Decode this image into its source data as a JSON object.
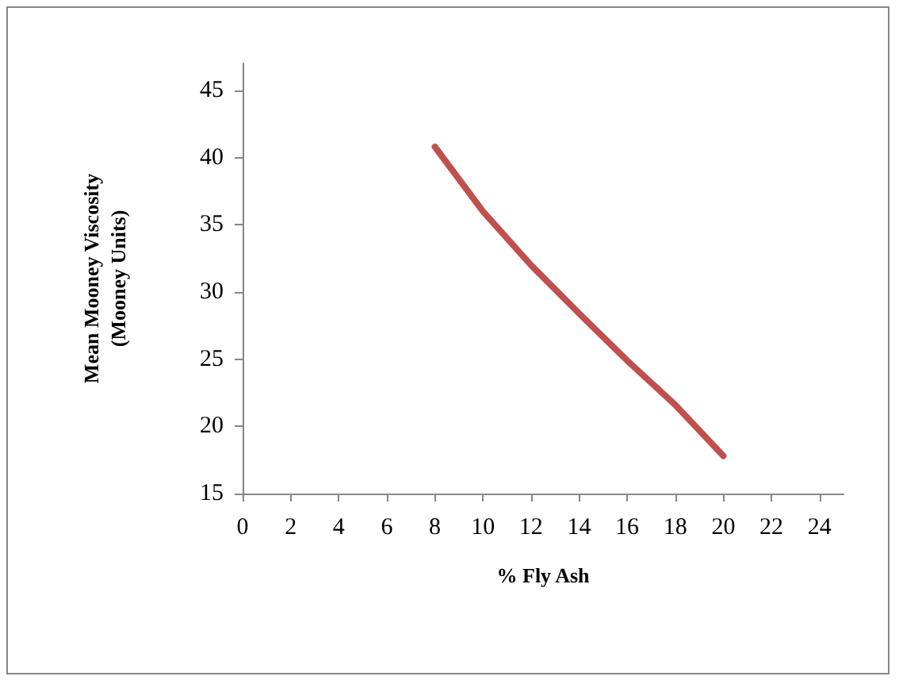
{
  "chart_data": {
    "type": "line",
    "xlabel": "% Fly Ash",
    "ylabel": "Mean Mooney Viscosity\n(Mooney Units)",
    "x": [
      8,
      10,
      12,
      14,
      16,
      18,
      20
    ],
    "series": [
      {
        "color": "#c0504d",
        "values": [
          40.8,
          36.0,
          32.0,
          28.4,
          24.9,
          21.6,
          17.8
        ]
      }
    ],
    "xlim": [
      0,
      25
    ],
    "xticks": [
      0,
      2,
      4,
      6,
      8,
      10,
      12,
      14,
      16,
      18,
      20,
      22,
      24
    ],
    "ylim": [
      15,
      47
    ],
    "yticks": [
      15,
      20,
      25,
      30,
      35,
      40,
      45
    ],
    "grid": false,
    "marker": "none",
    "line_style": "solid"
  }
}
